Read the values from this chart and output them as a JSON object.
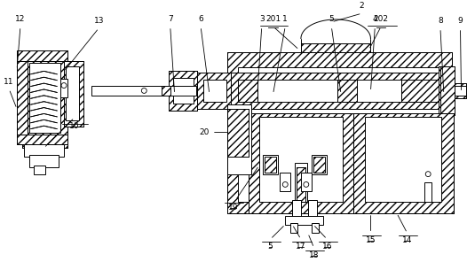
{
  "bg_color": "#ffffff",
  "line_color": "#000000",
  "fig_width": 5.35,
  "fig_height": 2.96,
  "dpi": 100,
  "font_size": 6.5,
  "lw": 0.7
}
